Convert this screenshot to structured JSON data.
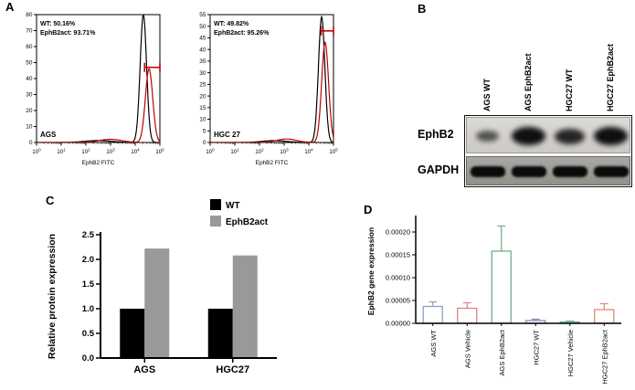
{
  "panel_labels": {
    "A": "A",
    "B": "B",
    "C": "C",
    "D": "D"
  },
  "chart_data": [
    {
      "id": "flow_ags",
      "type": "line",
      "subtype": "flow-cytometry-histogram",
      "cell_line_label": "AGS",
      "xlabel": "EphB2 FITC",
      "x_scale": "log10",
      "x_ticks_exponents": [
        0,
        1,
        2,
        3,
        4,
        5
      ],
      "ylim": [
        0,
        80
      ],
      "y_ticks": [
        0,
        10,
        20,
        30,
        40,
        50,
        60,
        70,
        80
      ],
      "annotations": [
        {
          "text": "WT: 50.16%",
          "color": "#000000"
        },
        {
          "text": "EphB2act: 93.71%",
          "color": "#c00000"
        }
      ],
      "series": [
        {
          "name": "WT",
          "color": "#000000",
          "gaussians": [
            {
              "mu": 4.33,
              "sigma": 0.13,
              "h": 80
            },
            {
              "mu": 2.5,
              "sigma": 0.55,
              "h": 1.2
            }
          ]
        },
        {
          "name": "EphB2act",
          "color": "#c00000",
          "gaussians": [
            {
              "mu": 4.56,
              "sigma": 0.15,
              "h": 46
            },
            {
              "mu": 3.0,
              "sigma": 0.45,
              "h": 2
            }
          ]
        }
      ],
      "gate": {
        "y": 47,
        "x_start_log": 4.38,
        "x_end_log": 5.0,
        "color": "#c00000"
      }
    },
    {
      "id": "flow_hgc27",
      "type": "line",
      "subtype": "flow-cytometry-histogram",
      "cell_line_label": "HGC 27",
      "xlabel": "EphB2 FITC",
      "x_scale": "log10",
      "x_ticks_exponents": [
        0,
        1,
        2,
        3,
        4,
        5
      ],
      "ylim": [
        0,
        55
      ],
      "y_ticks": [
        0,
        5,
        10,
        15,
        20,
        25,
        30,
        35,
        40,
        45,
        50,
        55
      ],
      "annotations": [
        {
          "text": "WT: 49.82%",
          "color": "#000000"
        },
        {
          "text": "EphB2act: 95.26%",
          "color": "#c00000"
        }
      ],
      "series": [
        {
          "name": "WT",
          "color": "#000000",
          "gaussians": [
            {
              "mu": 4.52,
              "sigma": 0.13,
              "h": 54
            },
            {
              "mu": 2.6,
              "sigma": 0.5,
              "h": 0.8
            }
          ]
        },
        {
          "name": "EphB2act",
          "color": "#c00000",
          "gaussians": [
            {
              "mu": 4.66,
              "sigma": 0.14,
              "h": 43
            },
            {
              "mu": 3.1,
              "sigma": 0.4,
              "h": 1.5
            }
          ]
        }
      ],
      "gate": {
        "y": 48,
        "x_start_log": 4.5,
        "x_end_log": 5.0,
        "color": "#c00000"
      }
    },
    {
      "id": "protein_expression",
      "type": "bar",
      "categories": [
        "AGS",
        "HGC27"
      ],
      "series": [
        {
          "name": "WT",
          "color": "#000000",
          "values": [
            1.0,
            1.0
          ]
        },
        {
          "name": "EphB2act",
          "color": "#999999",
          "values": [
            2.22,
            2.08
          ]
        }
      ],
      "ylabel": "Relative protein expression",
      "ylim": [
        0,
        2.5
      ],
      "y_tick_labels": [
        "0.0",
        "0.5",
        "1.0",
        "1.5",
        "2.0",
        "2.5"
      ],
      "legend_position": "top-right"
    },
    {
      "id": "gene_expression",
      "type": "bar",
      "categories": [
        "AGS WT",
        "AGS Vehicle",
        "AGS EphB2act",
        "HGC27 WT",
        "HGC27 Vehicle",
        "HGC27 EphB2act"
      ],
      "values": [
        3.7e-05,
        3.3e-05,
        0.000158,
        6e-06,
        3e-06,
        3e-05
      ],
      "errors": [
        1e-05,
        1.2e-05,
        5.5e-05,
        3e-06,
        2e-06,
        1.3e-05
      ],
      "bar_colors": [
        "#8ea0c8",
        "#e08080",
        "#6fae85",
        "#9a7fb8",
        "#6fb0a0",
        "#e08878"
      ],
      "bar_fill": "#ffffff",
      "ylabel": "EphB2 gene expression",
      "ylim": [
        0,
        0.0002
      ],
      "y_tick_labels": [
        "0.00000",
        "0.00005",
        "0.00010",
        "0.00015",
        "0.00020"
      ]
    }
  ],
  "panel_b": {
    "lane_labels": [
      "AGS WT",
      "AGS EphB2act",
      "HGC27 WT",
      "HGC27 EphB2act"
    ],
    "rows": [
      {
        "label": "EphB2"
      },
      {
        "label": "GAPDH"
      }
    ],
    "ephb2_band_intensities": [
      0.35,
      0.95,
      0.75,
      0.95
    ],
    "gapdh_band_intensities": [
      1,
      1,
      1,
      1
    ]
  }
}
